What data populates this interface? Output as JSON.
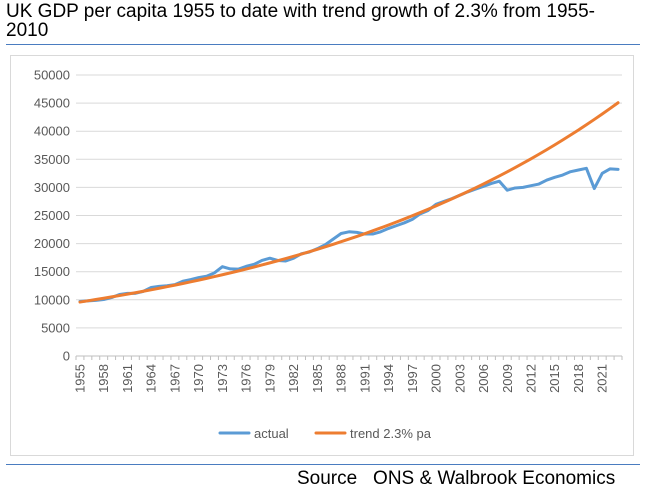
{
  "title": "UK GDP per capita 1955 to date with trend growth of 2.3% from 1955-2010",
  "source": {
    "label": "Source",
    "text": "ONS & Walbrook Economics"
  },
  "chart_data": {
    "type": "line",
    "title": "UK GDP per capita 1955 to date with trend growth of 2.3% from 1955-2010",
    "xlabel": "",
    "ylabel": "",
    "ylim": [
      0,
      50000
    ],
    "yticks": [
      0,
      5000,
      10000,
      15000,
      20000,
      25000,
      30000,
      35000,
      40000,
      45000,
      50000
    ],
    "xticks": [
      "1955",
      "1958",
      "1961",
      "1964",
      "1967",
      "1970",
      "1973",
      "1976",
      "1979",
      "1982",
      "1985",
      "1988",
      "1991",
      "1994",
      "1997",
      "2000",
      "2003",
      "2006",
      "2009",
      "2012",
      "2015",
      "2018",
      "2021"
    ],
    "grid": "horizontal",
    "legend": "bottom",
    "x": [
      1955,
      1956,
      1957,
      1958,
      1959,
      1960,
      1961,
      1962,
      1963,
      1964,
      1965,
      1966,
      1967,
      1968,
      1969,
      1970,
      1971,
      1972,
      1973,
      1974,
      1975,
      1976,
      1977,
      1978,
      1979,
      1980,
      1981,
      1982,
      1983,
      1984,
      1985,
      1986,
      1987,
      1988,
      1989,
      1990,
      1991,
      1992,
      1993,
      1994,
      1995,
      1996,
      1997,
      1998,
      1999,
      2000,
      2001,
      2002,
      2003,
      2004,
      2005,
      2006,
      2007,
      2008,
      2009,
      2010,
      2011,
      2012,
      2013,
      2014,
      2015,
      2016,
      2017,
      2018,
      2019,
      2020,
      2021,
      2022,
      2023
    ],
    "series": [
      {
        "name": "actual",
        "color": "#5b9bd5",
        "values": [
          9700,
          9800,
          9900,
          10050,
          10400,
          10950,
          11150,
          11150,
          11500,
          12200,
          12400,
          12500,
          12700,
          13300,
          13600,
          13950,
          14200,
          14800,
          15900,
          15500,
          15450,
          15950,
          16300,
          17000,
          17400,
          17000,
          16900,
          17400,
          18200,
          18500,
          19100,
          19800,
          20800,
          21800,
          22100,
          22000,
          21700,
          21700,
          22100,
          22700,
          23200,
          23700,
          24300,
          25300,
          25900,
          27000,
          27500,
          28000,
          28600,
          29200,
          29700,
          30200,
          30700,
          31100,
          29500,
          29900,
          30000,
          30300,
          30600,
          31300,
          31800,
          32200,
          32800,
          33100,
          33400,
          29800,
          32500,
          33300,
          33200
        ]
      },
      {
        "name": "trend 2.3% pa",
        "color": "#ed7d31",
        "values": [
          9600,
          9821,
          10047,
          10278,
          10514,
          10756,
          11003,
          11257,
          11516,
          11780,
          12051,
          12329,
          12612,
          12902,
          13199,
          13503,
          13813,
          14131,
          14456,
          14789,
          15129,
          15477,
          15833,
          16197,
          16570,
          16951,
          17340,
          17739,
          18147,
          18565,
          18992,
          19428,
          19875,
          20332,
          20800,
          21278,
          21768,
          22268,
          22781,
          23305,
          23841,
          24389,
          24950,
          25524,
          26111,
          26711,
          27326,
          27954,
          28597,
          29255,
          29928,
          30616,
          31320,
          32041,
          32778,
          33532,
          34303,
          35092,
          35899,
          36724,
          37569,
          38433,
          39317,
          40221,
          41146,
          42093,
          43061,
          44051,
          45064
        ]
      }
    ]
  }
}
